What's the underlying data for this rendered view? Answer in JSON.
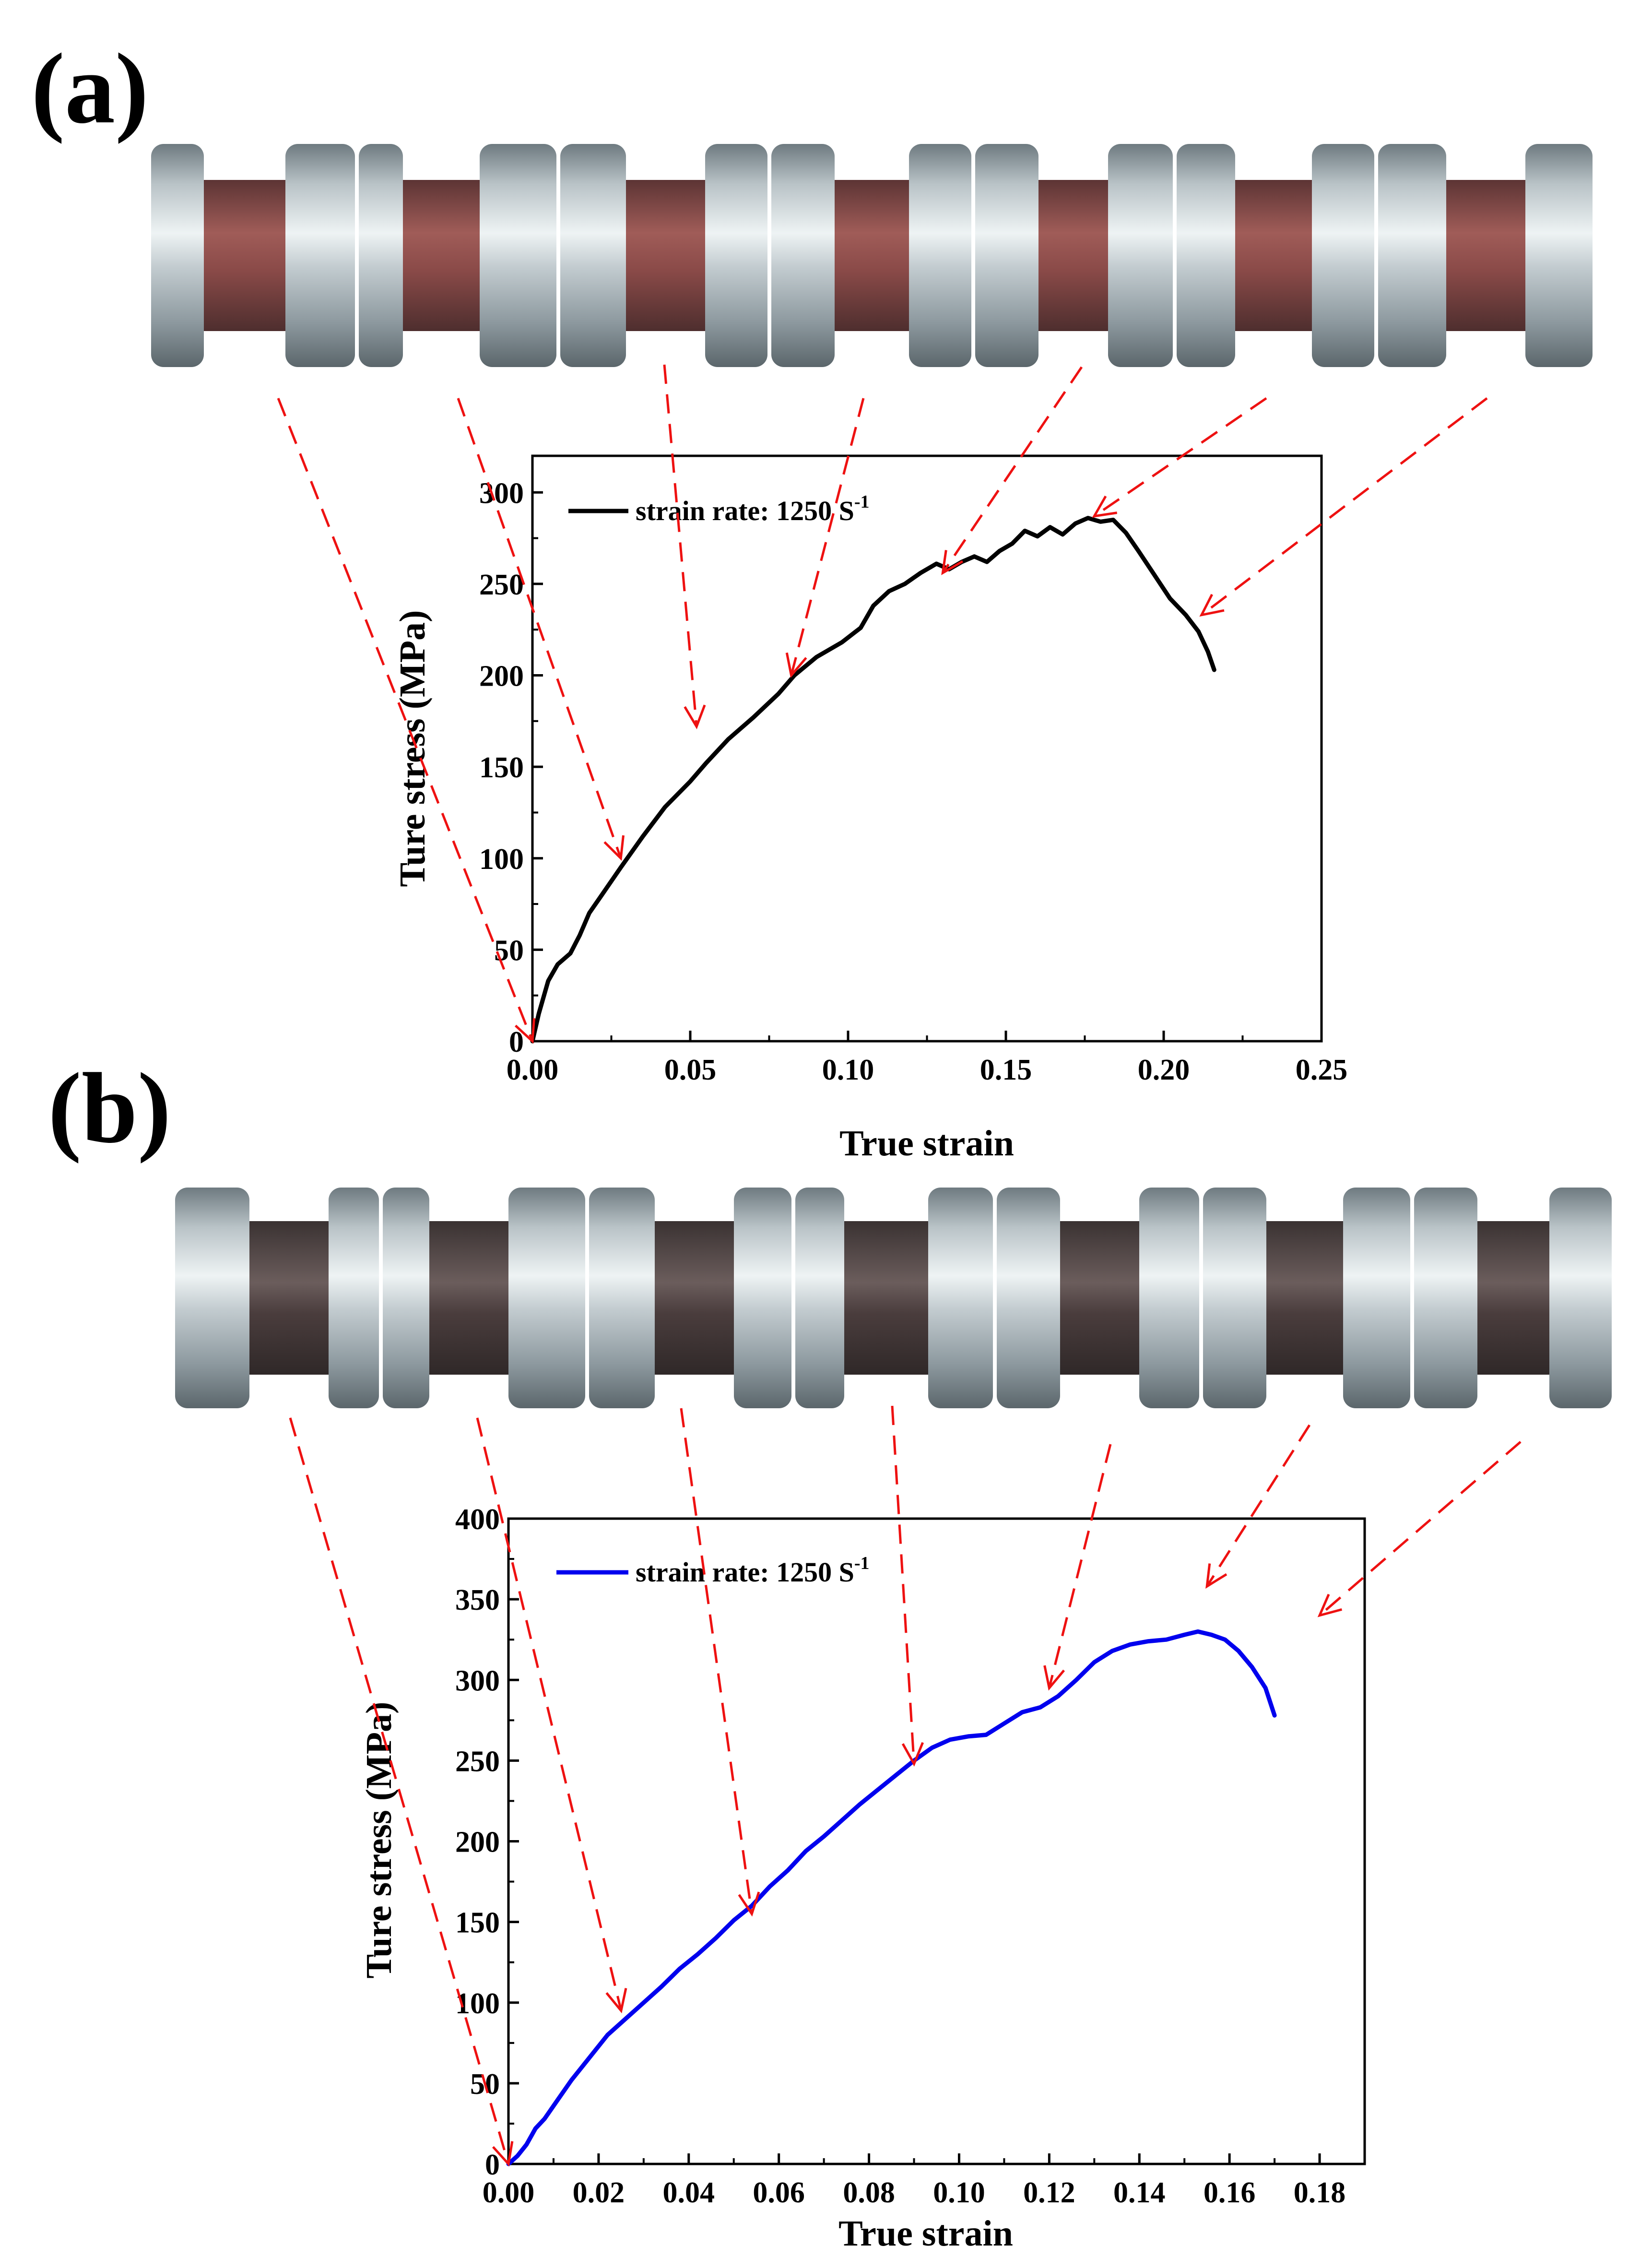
{
  "panels": {
    "a": {
      "label": "(a)"
    },
    "b": {
      "label": "(b)"
    }
  },
  "colors": {
    "curve_a": "#000000",
    "curve_b": "#0000ee",
    "arrows": "#ee1111",
    "specimen_gap_a": "#8a4a48",
    "specimen_gap_b": "#4a3d3d",
    "specimen_metal": "#b8c2c6"
  },
  "chart_data": [
    {
      "id": "a",
      "type": "line",
      "title": "",
      "xlabel": "True strain",
      "ylabel": "Ture stress (MPa)",
      "xlim": [
        0,
        0.25
      ],
      "ylim": [
        0,
        320
      ],
      "xticks": [
        0,
        0.05,
        0.1,
        0.15,
        0.2,
        0.25
      ],
      "xtick_labels": [
        "0.00",
        "0.05",
        "0.10",
        "0.15",
        "0.20",
        "0.25"
      ],
      "yticks": [
        0,
        50,
        100,
        150,
        200,
        250,
        300
      ],
      "ytick_labels": [
        "0",
        "50",
        "100",
        "150",
        "200",
        "250",
        "300"
      ],
      "legend": {
        "label": "strain rate: 1250 S",
        "superscript": "-1",
        "position": "top-left"
      },
      "series": [
        {
          "name": "strain rate: 1250 S-1",
          "color": "#000000",
          "x": [
            0,
            0.002,
            0.005,
            0.008,
            0.012,
            0.015,
            0.018,
            0.022,
            0.028,
            0.035,
            0.042,
            0.05,
            0.055,
            0.062,
            0.07,
            0.078,
            0.083,
            0.09,
            0.098,
            0.104,
            0.108,
            0.113,
            0.118,
            0.123,
            0.128,
            0.132,
            0.136,
            0.14,
            0.144,
            0.148,
            0.152,
            0.156,
            0.16,
            0.164,
            0.168,
            0.172,
            0.176,
            0.18,
            0.184,
            0.188,
            0.192,
            0.197,
            0.202,
            0.207,
            0.211,
            0.214,
            0.216
          ],
          "y": [
            0,
            15,
            33,
            42,
            48,
            58,
            70,
            80,
            95,
            112,
            128,
            142,
            152,
            165,
            177,
            190,
            200,
            210,
            218,
            226,
            238,
            246,
            250,
            256,
            261,
            258,
            262,
            265,
            262,
            268,
            272,
            279,
            276,
            281,
            277,
            283,
            286,
            284,
            285,
            278,
            268,
            255,
            242,
            233,
            224,
            213,
            203
          ]
        }
      ],
      "arrow_targets": [
        [
          0,
          0
        ],
        [
          0.028,
          100
        ],
        [
          0.052,
          172
        ],
        [
          0.082,
          200
        ],
        [
          0.13,
          256
        ],
        [
          0.178,
          287
        ],
        [
          0.212,
          233
        ]
      ]
    },
    {
      "id": "b",
      "type": "line",
      "title": "",
      "xlabel": "True strain",
      "ylabel": "Ture stress (MPa)",
      "xlim": [
        0,
        0.19
      ],
      "ylim": [
        0,
        400
      ],
      "xticks": [
        0,
        0.02,
        0.04,
        0.06,
        0.08,
        0.1,
        0.12,
        0.14,
        0.16,
        0.18
      ],
      "xtick_labels": [
        "0.00",
        "0.02",
        "0.04",
        "0.06",
        "0.08",
        "0.10",
        "0.12",
        "0.14",
        "0.16",
        "0.18"
      ],
      "yticks": [
        0,
        50,
        100,
        150,
        200,
        250,
        300,
        350,
        400
      ],
      "ytick_labels": [
        "0",
        "50",
        "100",
        "150",
        "200",
        "250",
        "300",
        "350",
        "400"
      ],
      "legend": {
        "label": "strain rate: 1250 S",
        "superscript": "-1",
        "position": "top-left"
      },
      "series": [
        {
          "name": "strain rate: 1250 S-1",
          "color": "#0000ee",
          "x": [
            0,
            0.002,
            0.004,
            0.006,
            0.008,
            0.011,
            0.014,
            0.018,
            0.022,
            0.026,
            0.03,
            0.034,
            0.038,
            0.042,
            0.046,
            0.05,
            0.054,
            0.058,
            0.062,
            0.066,
            0.07,
            0.074,
            0.078,
            0.082,
            0.086,
            0.09,
            0.094,
            0.098,
            0.102,
            0.106,
            0.11,
            0.114,
            0.118,
            0.122,
            0.126,
            0.13,
            0.134,
            0.138,
            0.142,
            0.146,
            0.15,
            0.153,
            0.156,
            0.159,
            0.162,
            0.165,
            0.168,
            0.17
          ],
          "y": [
            0,
            5,
            12,
            22,
            28,
            40,
            52,
            66,
            80,
            90,
            100,
            110,
            121,
            130,
            140,
            151,
            160,
            172,
            182,
            194,
            203,
            213,
            223,
            232,
            241,
            250,
            258,
            263,
            265,
            266,
            273,
            280,
            283,
            290,
            300,
            311,
            318,
            322,
            324,
            325,
            328,
            330,
            328,
            325,
            318,
            308,
            295,
            278
          ]
        }
      ],
      "arrow_targets": [
        [
          0,
          0
        ],
        [
          0.025,
          95
        ],
        [
          0.054,
          155
        ],
        [
          0.09,
          248
        ],
        [
          0.12,
          295
        ],
        [
          0.155,
          358
        ],
        [
          0.18,
          340
        ]
      ]
    }
  ]
}
